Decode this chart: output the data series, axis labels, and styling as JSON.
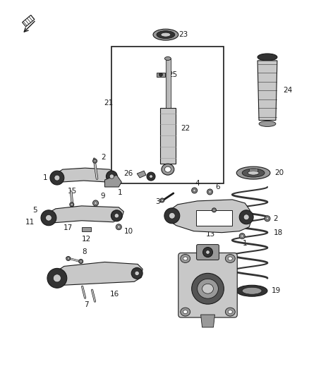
{
  "background_color": "#ffffff",
  "fig_width": 4.38,
  "fig_height": 5.33,
  "dpi": 100,
  "label_fontsize": 7.5,
  "line_color": "#1a1a1a",
  "part_color_light": "#c8c8c8",
  "part_color_mid": "#999999",
  "part_color_dark": "#555555",
  "part_color_very_dark": "#333333"
}
